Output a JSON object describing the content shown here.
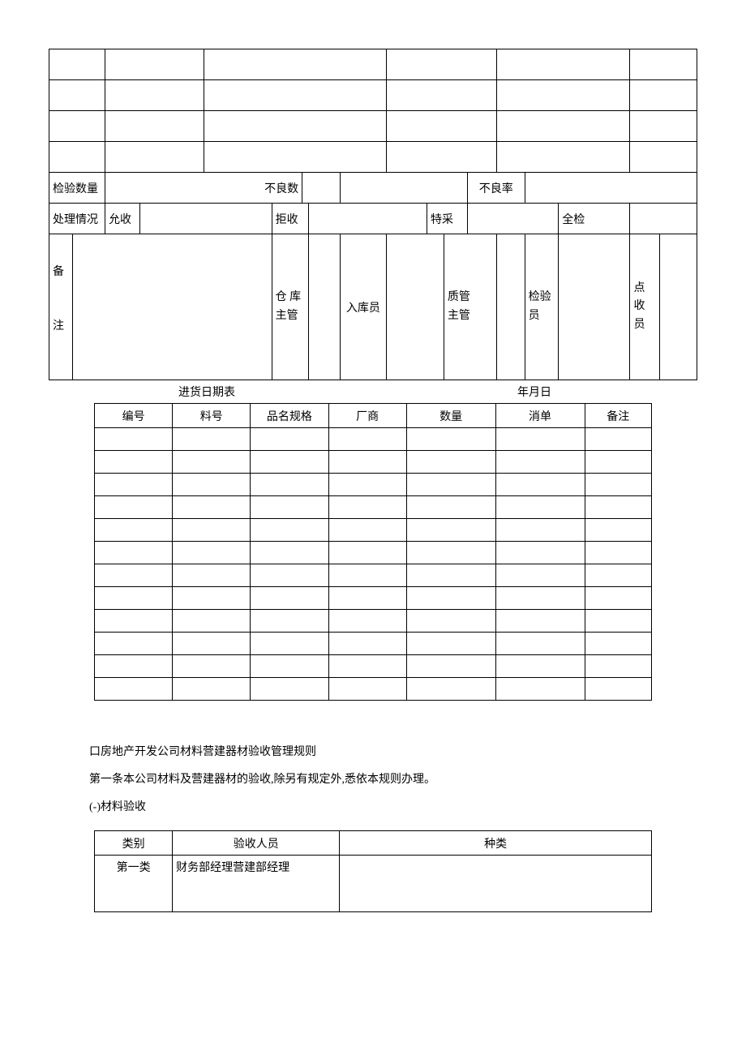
{
  "table1": {
    "inspection_qty_label": "检验数量",
    "defect_count_label": "不良数",
    "defect_rate_label": "不良率",
    "handling_label": "处理情况",
    "accept_label": "允收",
    "reject_label": "拒收",
    "special_label": "特采",
    "full_inspect_label": "全检",
    "remarks_label_1": "备",
    "remarks_label_2": "注",
    "warehouse_mgr_1": "仓 库",
    "warehouse_mgr_2": "主管",
    "stock_in_label": "入库员",
    "qc_mgr_1": "质管",
    "qc_mgr_2": "主管",
    "inspector_1": "检验",
    "inspector_2": "员",
    "receiver_1": "点",
    "receiver_2": "收",
    "receiver_3": "员"
  },
  "title_row": {
    "left": "进货日期表",
    "right": "年月日"
  },
  "table2": {
    "headers": [
      "编号",
      "料号",
      "品名规格",
      "厂商",
      "数量",
      "消单",
      "备注"
    ],
    "row_count": 12
  },
  "paragraphs": {
    "p1": "口房地产开发公司材料营建器材验收管理规则",
    "p2": "第一条本公司材料及营建器材的验收,除另有规定外,悉依本规则办理。",
    "p3": "(-)材料验收"
  },
  "table3": {
    "headers": [
      "类别",
      "验收人员",
      "种类"
    ],
    "row": {
      "category": "第一类",
      "personnel": "财务部经理营建部经理",
      "types": ""
    }
  }
}
